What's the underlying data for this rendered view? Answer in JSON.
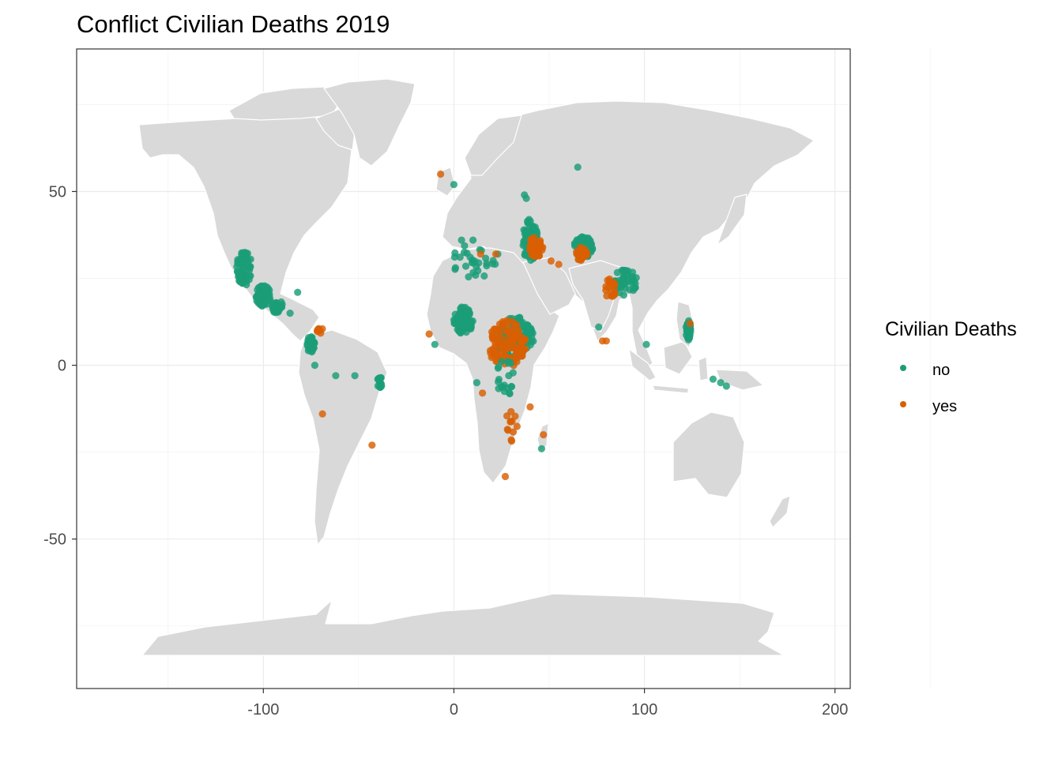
{
  "title": "Conflict Civilian Deaths 2019",
  "colors": {
    "no": "#1b9e77",
    "yes": "#d95f02",
    "land": "#d9d9d9",
    "land_border": "#ffffff",
    "grid_major": "#ebebeb",
    "grid_minor": "#f3f3f3",
    "frame": "#333333"
  },
  "chart_data": {
    "type": "scatter",
    "title": "Conflict Civilian Deaths 2019",
    "xlabel": "",
    "ylabel": "",
    "xlim": [
      -198,
      208
    ],
    "ylim": [
      -93,
      91
    ],
    "x_ticks": [
      -100,
      0,
      100,
      200
    ],
    "x_tick_labels": [
      "-100",
      "0",
      "100",
      "200"
    ],
    "y_ticks": [
      -50,
      0,
      50
    ],
    "y_tick_labels": [
      "-50",
      "0",
      "50"
    ],
    "grid": true,
    "legend": {
      "title": "Civilian Deaths",
      "position": "right",
      "entries": [
        {
          "key": "no",
          "label": "no"
        },
        {
          "key": "yes",
          "label": "yes"
        }
      ]
    },
    "clusters": [
      {
        "series": "no",
        "cx": -110,
        "cy": 28,
        "rx": 4,
        "ry": 5,
        "n": 70
      },
      {
        "series": "no",
        "cx": -100,
        "cy": 20,
        "rx": 4,
        "ry": 3,
        "n": 70
      },
      {
        "series": "no",
        "cx": -93,
        "cy": 17,
        "rx": 3,
        "ry": 2,
        "n": 25
      },
      {
        "series": "no",
        "cx": -75,
        "cy": 6,
        "rx": 2,
        "ry": 2.5,
        "n": 40
      },
      {
        "series": "yes",
        "cx": -70,
        "cy": 10,
        "rx": 2,
        "ry": 0.8,
        "n": 8
      },
      {
        "series": "no",
        "cx": -39,
        "cy": -5,
        "rx": 1.2,
        "ry": 2,
        "n": 15
      },
      {
        "series": "no",
        "cx": 12,
        "cy": 30,
        "rx": 14,
        "ry": 5,
        "n": 30
      },
      {
        "series": "no",
        "cx": 5,
        "cy": 13,
        "rx": 5,
        "ry": 4,
        "n": 90
      },
      {
        "series": "no",
        "cx": 32,
        "cy": 8,
        "rx": 10,
        "ry": 6,
        "n": 130
      },
      {
        "series": "yes",
        "cx": 28,
        "cy": 6,
        "rx": 10,
        "ry": 7,
        "n": 110
      },
      {
        "series": "no",
        "cx": 40,
        "cy": 36,
        "rx": 4,
        "ry": 6,
        "n": 100
      },
      {
        "series": "yes",
        "cx": 43,
        "cy": 34,
        "rx": 4,
        "ry": 3,
        "n": 45
      },
      {
        "series": "no",
        "cx": 68,
        "cy": 34,
        "rx": 5,
        "ry": 3,
        "n": 100
      },
      {
        "series": "yes",
        "cx": 67,
        "cy": 32,
        "rx": 3,
        "ry": 2,
        "n": 30
      },
      {
        "series": "no",
        "cx": 90,
        "cy": 24,
        "rx": 6,
        "ry": 4,
        "n": 50
      },
      {
        "series": "yes",
        "cx": 82,
        "cy": 22,
        "rx": 3,
        "ry": 3,
        "n": 20
      },
      {
        "series": "no",
        "cx": 123,
        "cy": 10,
        "rx": 1.2,
        "ry": 3,
        "n": 40
      },
      {
        "series": "no",
        "cx": 27,
        "cy": -3,
        "rx": 5,
        "ry": 6,
        "n": 20
      },
      {
        "series": "yes",
        "cx": 30,
        "cy": -18,
        "rx": 4,
        "ry": 6,
        "n": 12
      }
    ],
    "points": [
      {
        "series": "no",
        "x": 65,
        "y": 57
      },
      {
        "series": "yes",
        "x": -7,
        "y": 55
      },
      {
        "series": "no",
        "x": 0,
        "y": 52
      },
      {
        "series": "no",
        "x": -62,
        "y": -3
      },
      {
        "series": "no",
        "x": -52,
        "y": -3
      },
      {
        "series": "yes",
        "x": -69,
        "y": -14
      },
      {
        "series": "yes",
        "x": -43,
        "y": -23
      },
      {
        "series": "yes",
        "x": -13,
        "y": 9
      },
      {
        "series": "no",
        "x": -10,
        "y": 6
      },
      {
        "series": "yes",
        "x": 27,
        "y": -32
      },
      {
        "series": "yes",
        "x": 47,
        "y": -20
      },
      {
        "series": "no",
        "x": 46,
        "y": -24
      },
      {
        "series": "yes",
        "x": 40,
        "y": -12
      },
      {
        "series": "yes",
        "x": 55,
        "y": 29
      },
      {
        "series": "yes",
        "x": 51,
        "y": 30
      },
      {
        "series": "no",
        "x": 101,
        "y": 6
      },
      {
        "series": "yes",
        "x": 80,
        "y": 7
      },
      {
        "series": "yes",
        "x": 78,
        "y": 7
      },
      {
        "series": "no",
        "x": 76,
        "y": 11
      },
      {
        "series": "yes",
        "x": 124,
        "y": 12
      },
      {
        "series": "no",
        "x": 136,
        "y": -4
      },
      {
        "series": "no",
        "x": 140,
        "y": -5
      },
      {
        "series": "no",
        "x": 143,
        "y": -6
      },
      {
        "series": "no",
        "x": -73,
        "y": 0
      },
      {
        "series": "no",
        "x": -82,
        "y": 21
      },
      {
        "series": "no",
        "x": -86,
        "y": 15
      },
      {
        "series": "no",
        "x": 4,
        "y": 36
      },
      {
        "series": "no",
        "x": 10,
        "y": 36
      },
      {
        "series": "yes",
        "x": 14,
        "y": 32
      },
      {
        "series": "yes",
        "x": 22,
        "y": 32
      },
      {
        "series": "no",
        "x": 37,
        "y": 49
      },
      {
        "series": "no",
        "x": 38,
        "y": 48
      },
      {
        "series": "yes",
        "x": 33,
        "y": 1
      },
      {
        "series": "yes",
        "x": 15,
        "y": -8
      },
      {
        "series": "no",
        "x": 12,
        "y": -5
      }
    ]
  }
}
